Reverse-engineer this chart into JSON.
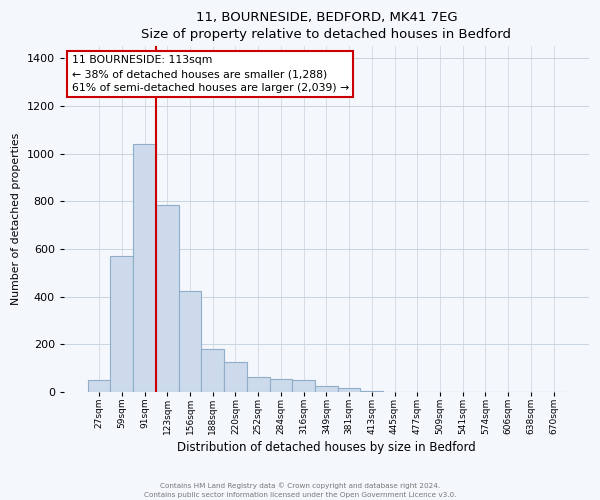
{
  "title": "11, BOURNESIDE, BEDFORD, MK41 7EG",
  "subtitle": "Size of property relative to detached houses in Bedford",
  "xlabel": "Distribution of detached houses by size in Bedford",
  "ylabel": "Number of detached properties",
  "bar_labels": [
    "27sqm",
    "59sqm",
    "91sqm",
    "123sqm",
    "156sqm",
    "188sqm",
    "220sqm",
    "252sqm",
    "284sqm",
    "316sqm",
    "349sqm",
    "381sqm",
    "413sqm",
    "445sqm",
    "477sqm",
    "509sqm",
    "541sqm",
    "574sqm",
    "606sqm",
    "638sqm",
    "670sqm"
  ],
  "bar_values": [
    50,
    570,
    1040,
    785,
    425,
    180,
    125,
    65,
    55,
    50,
    25,
    15,
    5,
    0,
    0,
    0,
    0,
    0,
    0,
    0,
    0
  ],
  "bar_color": "#ccdaeb",
  "bar_edge_color": "#90aec8",
  "vline_color": "#cc0000",
  "vline_x_index": 3,
  "annotation_text": "11 BOURNESIDE: 113sqm\n← 38% of detached houses are smaller (1,288)\n61% of semi-detached houses are larger (2,039) →",
  "annotation_box_color": "#ffffff",
  "annotation_box_edge_color": "#cc0000",
  "ylim": [
    0,
    1450
  ],
  "yticks": [
    0,
    200,
    400,
    600,
    800,
    1000,
    1200,
    1400
  ],
  "footer_line1": "Contains HM Land Registry data © Crown copyright and database right 2024.",
  "footer_line2": "Contains public sector information licensed under the Open Government Licence v3.0.",
  "background_color": "#f4f7fb",
  "plot_bg_color": "#f4f7fb",
  "grid_color": "#c8d4e0"
}
